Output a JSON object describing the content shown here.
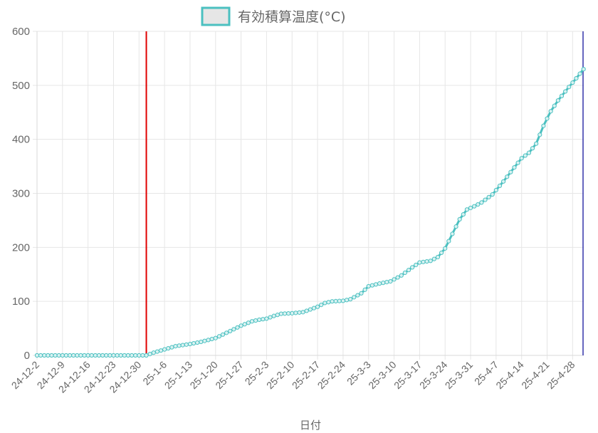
{
  "chart_data": {
    "type": "line",
    "legend": {
      "label": "有効積算温度(°C)",
      "position": "top"
    },
    "xlabel": "日付",
    "ylabel": "",
    "ylim": [
      0,
      600
    ],
    "y_ticks": [
      0,
      100,
      200,
      300,
      400,
      500,
      600
    ],
    "x_start": "2024-12-02",
    "x_end": "2025-05-03",
    "x_tick_labels": [
      "24-12-2",
      "24-12-9",
      "24-12-16",
      "24-12-23",
      "24-12-30",
      "25-1-6",
      "25-1-13",
      "25-1-20",
      "25-1-27",
      "25-2-3",
      "25-2-10",
      "25-2-17",
      "25-2-24",
      "25-3-3",
      "25-3-10",
      "25-3-17",
      "25-3-24",
      "25-3-31",
      "25-4-7",
      "25-4-14",
      "25-4-21",
      "25-4-28"
    ],
    "grid": true,
    "colors": {
      "line": "#4bc0c0",
      "marker_line_red": "#e00000",
      "marker_line_blue": "#3333aa",
      "grid": "#e6e6e6"
    },
    "vertical_markers": [
      {
        "date": "2025-01-01",
        "color": "#e00000"
      },
      {
        "date": "2025-05-04",
        "color": "#3333aa"
      }
    ],
    "series": [
      {
        "name": "有効積算温度(°C)",
        "points": [
          [
            "2024-12-02",
            0
          ],
          [
            "2024-12-31",
            0
          ],
          [
            "2025-01-01",
            0
          ],
          [
            "2025-01-03",
            5
          ],
          [
            "2025-01-06",
            11
          ],
          [
            "2025-01-09",
            17
          ],
          [
            "2025-01-13",
            21
          ],
          [
            "2025-01-16",
            25
          ],
          [
            "2025-01-20",
            32
          ],
          [
            "2025-01-24",
            45
          ],
          [
            "2025-01-27",
            55
          ],
          [
            "2025-01-30",
            63
          ],
          [
            "2025-02-01",
            66
          ],
          [
            "2025-02-03",
            68
          ],
          [
            "2025-02-05",
            73
          ],
          [
            "2025-02-07",
            77
          ],
          [
            "2025-02-10",
            78
          ],
          [
            "2025-02-13",
            80
          ],
          [
            "2025-02-17",
            90
          ],
          [
            "2025-02-19",
            97
          ],
          [
            "2025-02-21",
            100
          ],
          [
            "2025-02-24",
            101
          ],
          [
            "2025-02-26",
            104
          ],
          [
            "2025-03-01",
            115
          ],
          [
            "2025-03-03",
            128
          ],
          [
            "2025-03-06",
            133
          ],
          [
            "2025-03-09",
            137
          ],
          [
            "2025-03-12",
            148
          ],
          [
            "2025-03-15",
            163
          ],
          [
            "2025-03-17",
            172
          ],
          [
            "2025-03-20",
            175
          ],
          [
            "2025-03-22",
            182
          ],
          [
            "2025-03-24",
            198
          ],
          [
            "2025-03-26",
            225
          ],
          [
            "2025-03-28",
            252
          ],
          [
            "2025-03-30",
            270
          ],
          [
            "2025-04-01",
            276
          ],
          [
            "2025-04-03",
            283
          ],
          [
            "2025-04-06",
            298
          ],
          [
            "2025-04-09",
            322
          ],
          [
            "2025-04-12",
            348
          ],
          [
            "2025-04-14",
            365
          ],
          [
            "2025-04-16",
            375
          ],
          [
            "2025-04-18",
            392
          ],
          [
            "2025-04-20",
            425
          ],
          [
            "2025-04-22",
            452
          ],
          [
            "2025-04-24",
            472
          ],
          [
            "2025-04-27",
            497
          ],
          [
            "2025-04-29",
            513
          ],
          [
            "2025-05-01",
            530
          ]
        ]
      }
    ]
  }
}
